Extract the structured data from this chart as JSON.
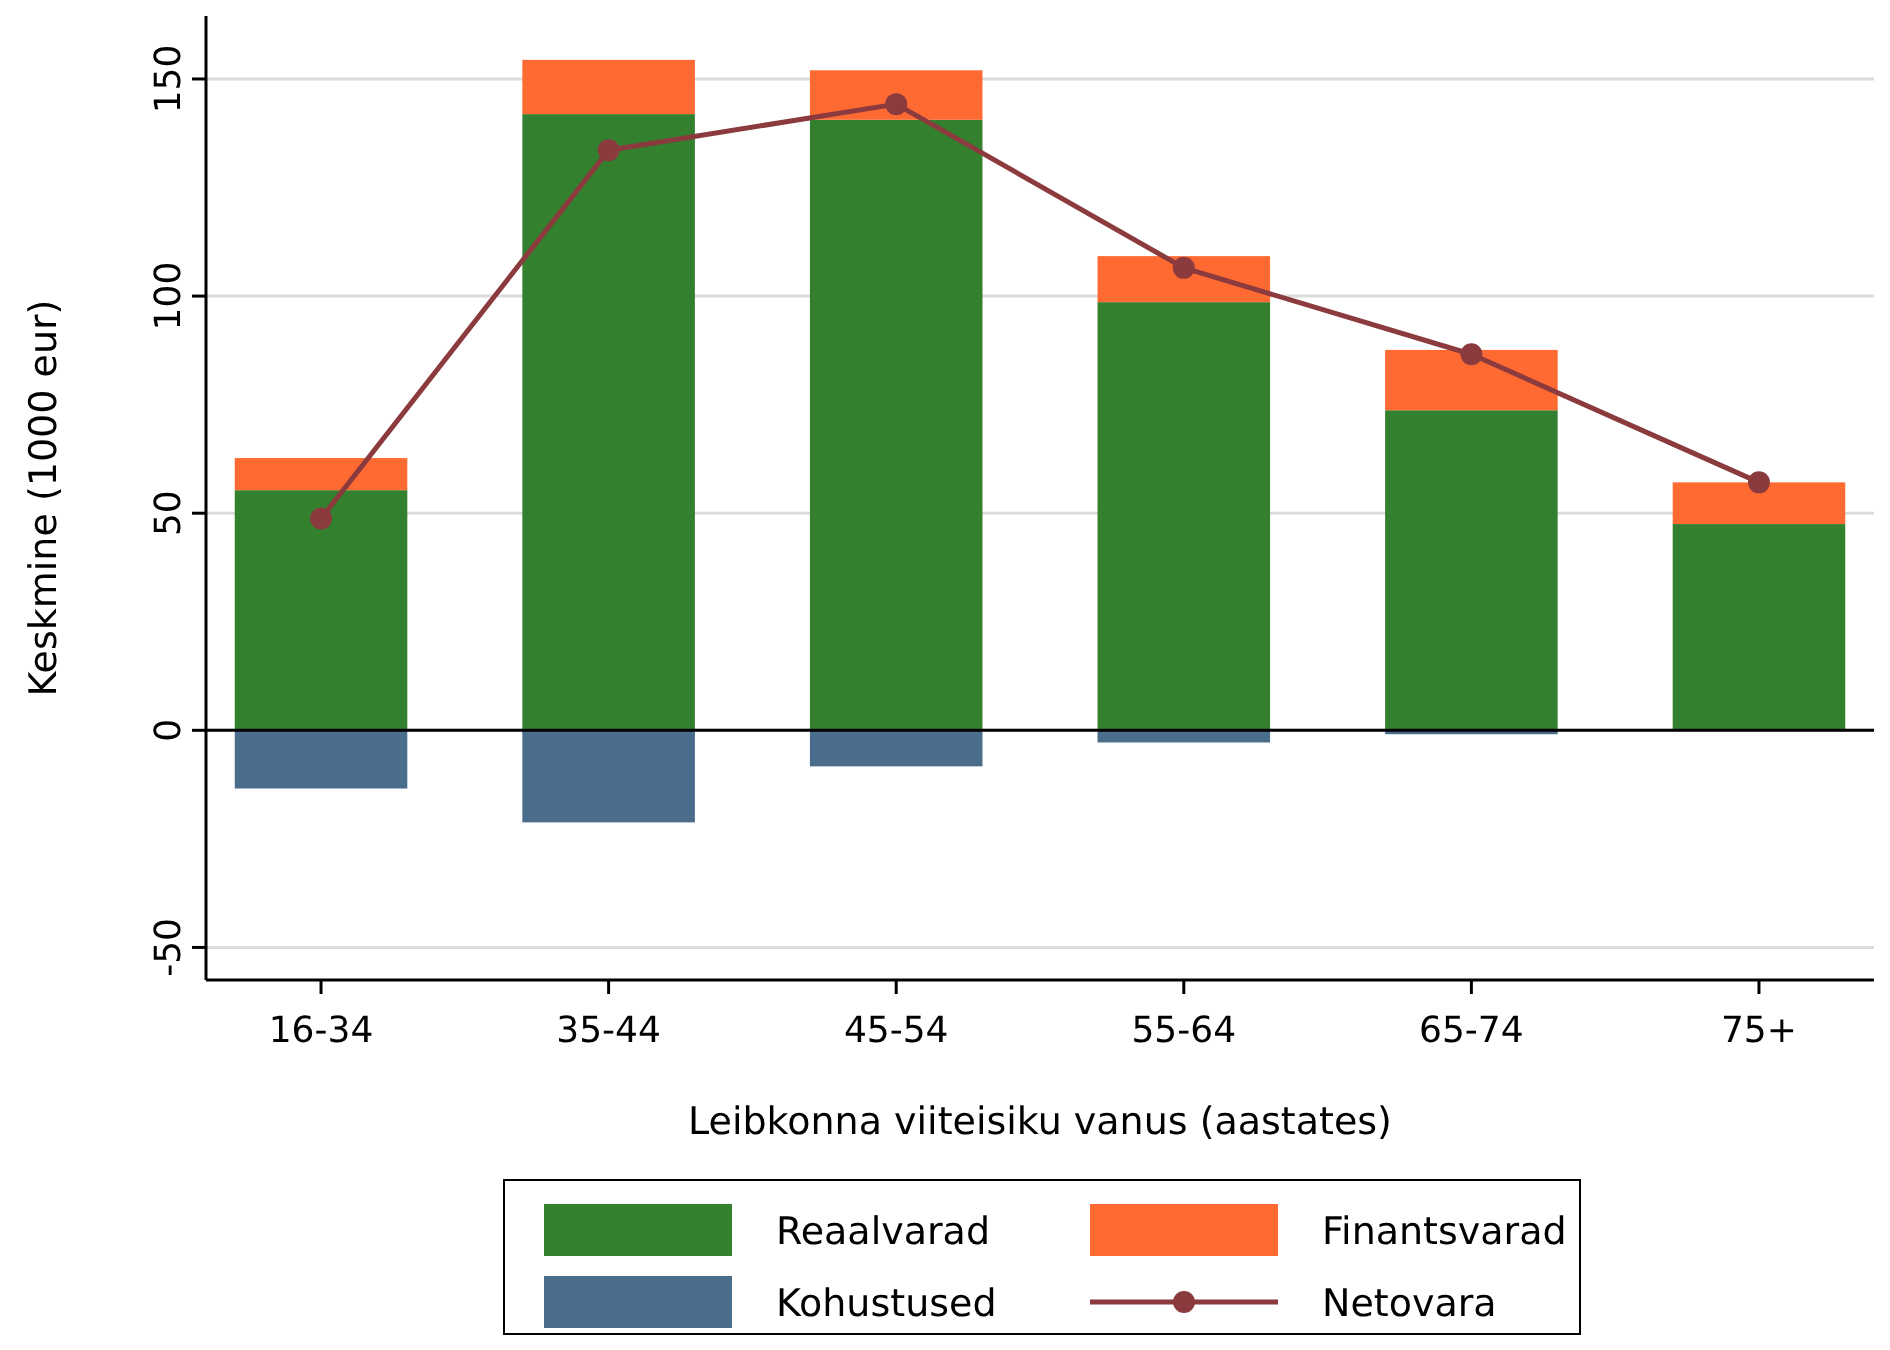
{
  "chart_data": {
    "type": "bar",
    "stacked": true,
    "xlabel": "Leibkonna viiteisiku vanus (aastates)",
    "ylabel": "Keskmine (1000 eur)",
    "categories": [
      "16-34",
      "35-44",
      "45-54",
      "55-64",
      "65-74",
      "75+"
    ],
    "series": [
      {
        "name": "Reaalvarad",
        "color": "#33802f",
        "values": [
          55.3,
          141.9,
          140.6,
          98.6,
          73.7,
          47.5
        ]
      },
      {
        "name": "Finantsvarad",
        "color": "#ff6a33",
        "values": [
          7.4,
          12.5,
          11.4,
          10.6,
          13.9,
          9.6
        ]
      },
      {
        "name": "Kohustused",
        "color": "#4a6d8c",
        "values": [
          -13.4,
          -21.2,
          -8.3,
          -2.8,
          -0.9,
          null
        ]
      },
      {
        "name": "Netovara",
        "type": "line",
        "color": "#8b3a3e",
        "marker": "circle",
        "values": [
          48.8,
          133.6,
          144.2,
          106.5,
          86.6,
          57.1
        ]
      }
    ],
    "ylim": [
      -57.5,
      164.5
    ],
    "yticks": [
      -50,
      0,
      50,
      100,
      150
    ],
    "grid": "y",
    "legend": "bottom",
    "ref_lines": [
      {
        "axis": "y",
        "value": 0,
        "color": "#000000"
      }
    ]
  }
}
